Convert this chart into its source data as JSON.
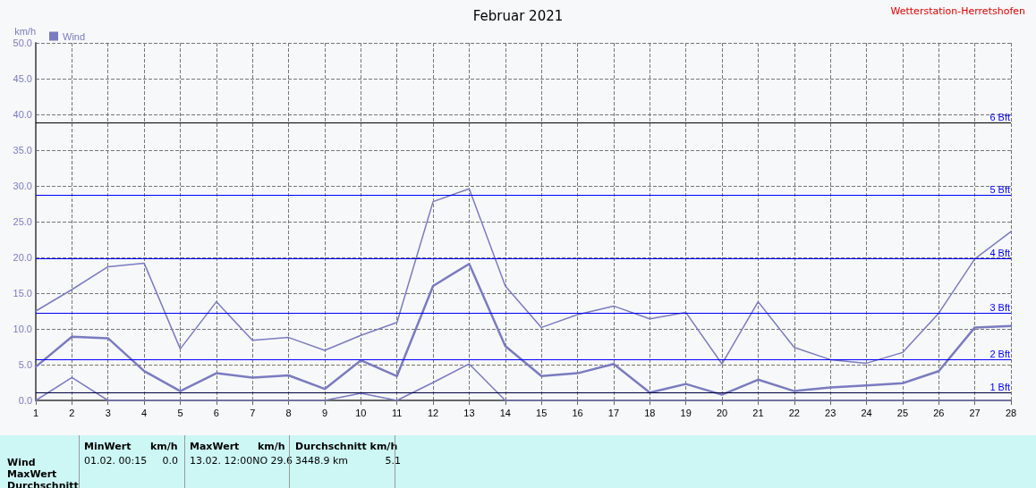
{
  "chart_data": {
    "type": "line",
    "title": "Februar 2021",
    "ylabel": "km/h",
    "x": [
      1,
      2,
      3,
      4,
      5,
      6,
      7,
      8,
      9,
      10,
      11,
      12,
      13,
      14,
      15,
      16,
      17,
      18,
      19,
      20,
      21,
      22,
      23,
      24,
      25,
      26,
      27,
      28
    ],
    "series": [
      {
        "color": "#7b7bbf",
        "values": [
          12.5,
          15.5,
          18.7,
          19.2,
          7.2,
          13.8,
          8.4,
          8.8,
          7.0,
          9.1,
          10.9,
          27.8,
          29.6,
          16.0,
          10.2,
          12.0,
          13.2,
          11.4,
          12.3,
          5.1,
          13.8,
          7.4,
          5.7,
          5.2,
          6.7,
          12.2,
          19.8,
          23.6
        ]
      },
      {
        "name": "Wind",
        "color": "#7b7bbf",
        "values": [
          4.7,
          8.9,
          8.7,
          4.1,
          1.3,
          3.8,
          3.2,
          3.5,
          1.6,
          5.6,
          3.4,
          16.0,
          19.1,
          7.6,
          3.4,
          3.8,
          5.1,
          1.1,
          2.3,
          0.8,
          2.9,
          1.3,
          1.8,
          2.1,
          2.4,
          4.1,
          10.2,
          10.4
        ]
      },
      {
        "color": "#7b7bbf",
        "values": [
          0,
          3.2,
          0,
          0,
          0,
          0,
          0,
          0,
          0,
          1.0,
          0,
          2.5,
          5.1,
          0,
          0,
          0,
          0,
          0,
          0,
          0,
          0,
          0,
          0,
          0,
          0,
          0,
          0,
          0
        ]
      }
    ],
    "xlim": [
      1,
      28
    ],
    "xticks": [
      1,
      2,
      3,
      4,
      5,
      6,
      7,
      8,
      9,
      10,
      11,
      12,
      13,
      14,
      15,
      16,
      17,
      18,
      19,
      20,
      21,
      22,
      23,
      24,
      25,
      26,
      27,
      28
    ],
    "ylim": [
      0,
      50
    ],
    "yticks": [
      {
        "value": 0,
        "label": "0.0"
      },
      {
        "value": 5,
        "label": "5.0"
      },
      {
        "value": 10,
        "label": "10.0"
      },
      {
        "value": 15,
        "label": "15.0"
      },
      {
        "value": 20,
        "label": "20.0"
      },
      {
        "value": 25,
        "label": "25.0"
      },
      {
        "value": 30,
        "label": "30.0"
      },
      {
        "value": 35,
        "label": "35.0"
      },
      {
        "value": 40,
        "label": "40.0"
      },
      {
        "value": 45,
        "label": "45.0"
      },
      {
        "value": 50,
        "label": "50.0"
      }
    ],
    "ref_lines": [
      {
        "axis": "y",
        "value": 1.1,
        "label": "1 Bft",
        "color": "#000040"
      },
      {
        "axis": "y",
        "value": 5.7,
        "label": "2 Bft",
        "color": "#0000ff"
      },
      {
        "axis": "y",
        "value": 12.2,
        "label": "3 Bft",
        "color": "#0000ff"
      },
      {
        "axis": "y",
        "value": 19.8,
        "label": "4 Bft",
        "color": "#0000ff"
      },
      {
        "axis": "y",
        "value": 28.7,
        "label": "5 Bft",
        "color": "#0000ff"
      },
      {
        "axis": "y",
        "value": 38.8,
        "label": "6 Bft",
        "color": "#000000"
      }
    ],
    "annotations": [
      "Wetterstation-Herretshofen",
      "Wind",
      "MaxWert",
      "Durchschnitt",
      "MinWert",
      "km/h",
      "01.02.  00:15",
      "0.0",
      "MaxWert",
      "km/h",
      "13.02.  12:00NO 29.6",
      "Durchschnitt km/h",
      "3448.9 km",
      "5.1"
    ],
    "grid": true,
    "legend": "top left",
    "marker": "none",
    "line_style": "solid"
  }
}
